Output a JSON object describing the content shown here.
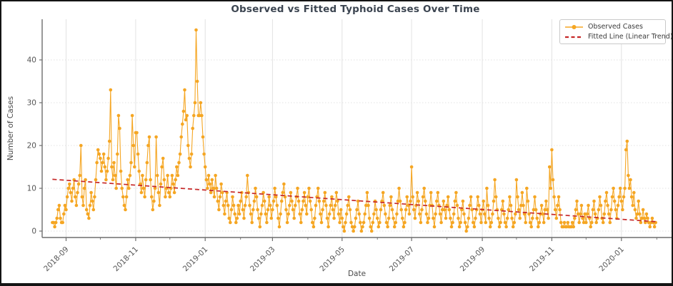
{
  "figure": {
    "border_color": "#141414",
    "background": "#ffffff"
  },
  "legend": {
    "items": [
      {
        "label": "Observed Cases",
        "swatch": "line-with-dot",
        "color": "#F5A623"
      },
      {
        "label": "Fitted Line (Linear Trend)",
        "swatch": "dashed-line",
        "color": "#C62828"
      }
    ]
  },
  "chart_data": {
    "type": "line",
    "title": "Observed vs Fitted Typhoid Cases Over Time",
    "xlabel": "Date",
    "ylabel": "Number of Cases",
    "start_date": "2018-08-20",
    "frequency": "daily",
    "ylim": [
      -1.5,
      49.5
    ],
    "xlim_index": [
      -9,
      543
    ],
    "y_ticks": [
      0,
      10,
      20,
      30,
      40
    ],
    "x_ticks": [
      {
        "index": 12,
        "label": "2018-09"
      },
      {
        "index": 73,
        "label": "2018-11"
      },
      {
        "index": 134,
        "label": "2019-01"
      },
      {
        "index": 193,
        "label": "2019-03"
      },
      {
        "index": 254,
        "label": "2019-05"
      },
      {
        "index": 315,
        "label": "2019-07"
      },
      {
        "index": 377,
        "label": "2019-09"
      },
      {
        "index": 438,
        "label": "2019-11"
      },
      {
        "index": 499,
        "label": "2020-01"
      }
    ],
    "x_minor_tick_indices": [
      42,
      103,
      165,
      224,
      285,
      346,
      407,
      468,
      530
    ],
    "grid": {
      "horizontal": "dotted",
      "vertical": "solid",
      "color": "#e2e2e2"
    },
    "axis": {
      "text_color": "#555555",
      "spine_color": "#6e6e6e"
    },
    "series": [
      {
        "name": "Observed Cases",
        "color": "#F5A623",
        "marker": "circle",
        "values": [
          2,
          2,
          1,
          2,
          3,
          5,
          6,
          3,
          2,
          2,
          4,
          6,
          5,
          8,
          10,
          11,
          9,
          7,
          10,
          12,
          8,
          6,
          9,
          11,
          13,
          20,
          8,
          6,
          10,
          12,
          5,
          4,
          3,
          6,
          9,
          7,
          5,
          8,
          12,
          16,
          19,
          18,
          17,
          14,
          16,
          18,
          15,
          12,
          14,
          17,
          21,
          33,
          15,
          12,
          16,
          13,
          10,
          18,
          27,
          24,
          14,
          10,
          8,
          6,
          5,
          8,
          12,
          10,
          13,
          16,
          27,
          20,
          15,
          23,
          23,
          18,
          14,
          11,
          9,
          13,
          10,
          8,
          12,
          16,
          20,
          22,
          12,
          8,
          5,
          7,
          10,
          22,
          13,
          9,
          6,
          11,
          15,
          17,
          12,
          8,
          10,
          13,
          9,
          8,
          10,
          13,
          11,
          9,
          12,
          15,
          13,
          16,
          18,
          22,
          25,
          28,
          33,
          26,
          27,
          20,
          17,
          15,
          18,
          24,
          27,
          30,
          47,
          35,
          27,
          27,
          30,
          27,
          22,
          18,
          15,
          12,
          10,
          13,
          11,
          9,
          12,
          10,
          8,
          13,
          10,
          7,
          5,
          8,
          11,
          9,
          6,
          4,
          7,
          9,
          6,
          3,
          2,
          5,
          8,
          6,
          4,
          2,
          3,
          6,
          4,
          7,
          9,
          5,
          3,
          6,
          8,
          13,
          9,
          6,
          4,
          2,
          5,
          7,
          10,
          8,
          5,
          3,
          1,
          4,
          6,
          9,
          7,
          4,
          2,
          5,
          8,
          6,
          3,
          5,
          7,
          10,
          8,
          6,
          3,
          1,
          4,
          7,
          9,
          11,
          8,
          5,
          2,
          4,
          6,
          9,
          7,
          5,
          3,
          6,
          8,
          10,
          7,
          4,
          2,
          5,
          7,
          9,
          6,
          4,
          8,
          10,
          7,
          5,
          2,
          1,
          3,
          6,
          8,
          10,
          7,
          4,
          2,
          5,
          7,
          9,
          6,
          3,
          1,
          4,
          6,
          8,
          5,
          3,
          6,
          9,
          7,
          4,
          2,
          5,
          3,
          1,
          0,
          2,
          4,
          6,
          8,
          5,
          2,
          1,
          0,
          1,
          3,
          5,
          7,
          4,
          2,
          0,
          1,
          2,
          4,
          6,
          9,
          6,
          3,
          1,
          0,
          2,
          4,
          7,
          5,
          3,
          1,
          2,
          5,
          7,
          9,
          6,
          4,
          2,
          1,
          3,
          6,
          8,
          5,
          3,
          1,
          2,
          4,
          7,
          10,
          7,
          5,
          3,
          1,
          2,
          5,
          8,
          6,
          4,
          7,
          15,
          8,
          5,
          3,
          6,
          9,
          7,
          4,
          2,
          5,
          8,
          10,
          7,
          4,
          2,
          3,
          6,
          9,
          6,
          3,
          1,
          4,
          7,
          9,
          6,
          4,
          2,
          5,
          7,
          5,
          3,
          6,
          8,
          5,
          3,
          1,
          2,
          4,
          7,
          9,
          6,
          3,
          1,
          2,
          5,
          7,
          4,
          2,
          0,
          1,
          3,
          6,
          8,
          5,
          2,
          1,
          3,
          5,
          8,
          6,
          4,
          2,
          5,
          7,
          4,
          2,
          10,
          6,
          3,
          1,
          2,
          4,
          7,
          12,
          8,
          5,
          3,
          1,
          2,
          5,
          7,
          4,
          2,
          1,
          3,
          5,
          8,
          6,
          3,
          1,
          2,
          4,
          12,
          8,
          5,
          3,
          6,
          9,
          6,
          4,
          2,
          10,
          7,
          4,
          2,
          1,
          3,
          5,
          8,
          5,
          3,
          1,
          2,
          4,
          6,
          4,
          2,
          5,
          7,
          5,
          3,
          15,
          10,
          19,
          12,
          8,
          5,
          3,
          6,
          8,
          5,
          2,
          1,
          1,
          2,
          1,
          1,
          2,
          1,
          1,
          1,
          2,
          1,
          3,
          5,
          7,
          4,
          2,
          4,
          6,
          3,
          2,
          4,
          2,
          4,
          6,
          3,
          1,
          2,
          5,
          7,
          4,
          2,
          3,
          5,
          8,
          6,
          3,
          2,
          4,
          7,
          9,
          6,
          4,
          2,
          5,
          8,
          10,
          7,
          5,
          3,
          6,
          8,
          10,
          7,
          5,
          8,
          10,
          19,
          21,
          13,
          10,
          12,
          8,
          6,
          9,
          5,
          3,
          4,
          7,
          4,
          2,
          3,
          5,
          3,
          2,
          4,
          3,
          2,
          1,
          2,
          3,
          2,
          1,
          2
        ]
      },
      {
        "name": "Fitted Line (Linear Trend)",
        "color": "#C62828",
        "style": "dashed",
        "trend": {
          "start_value": 12.1,
          "end_value": 2.2
        }
      }
    ]
  }
}
